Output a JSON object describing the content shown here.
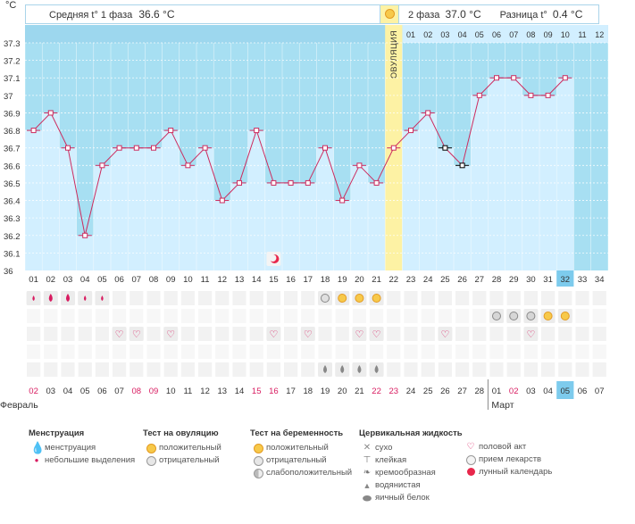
{
  "header": {
    "unit": "°C",
    "phase1_label": "Средняя t° 1 фаза",
    "phase1_value": "36.6 °C",
    "phase2_label": "2 фаза",
    "phase2_value": "37.0 °C",
    "diff_label": "Разница t°",
    "diff_value": "0.4 °C"
  },
  "ovulation_label": "ОВУЛЯЦИЯ",
  "y_ticks": [
    "37.3",
    "37.2",
    "37.1",
    "37",
    "36.9",
    "36.8",
    "36.7",
    "36.6",
    "36.5",
    "36.4",
    "36.3",
    "36.2",
    "36.1",
    "36"
  ],
  "top_day_numbers": [
    "01",
    "02",
    "03",
    "04",
    "05",
    "06",
    "07",
    "08",
    "09",
    "10",
    "11",
    "12"
  ],
  "cycle_days": [
    "01",
    "02",
    "03",
    "04",
    "05",
    "06",
    "07",
    "08",
    "09",
    "10",
    "11",
    "12",
    "13",
    "14",
    "15",
    "16",
    "17",
    "18",
    "19",
    "20",
    "21",
    "22",
    "23",
    "24",
    "25",
    "26",
    "27",
    "28",
    "29",
    "30",
    "31",
    "32",
    "33",
    "34"
  ],
  "current_cycle_day": "32",
  "calendar_dates": [
    "02",
    "03",
    "04",
    "05",
    "06",
    "07",
    "08",
    "09",
    "10",
    "11",
    "12",
    "13",
    "14",
    "15",
    "16",
    "17",
    "18",
    "19",
    "20",
    "21",
    "22",
    "23",
    "24",
    "25",
    "26",
    "27",
    "28",
    "01",
    "02",
    "03",
    "04",
    "05",
    "06",
    "07"
  ],
  "red_dates_idx": [
    0,
    6,
    7,
    13,
    14,
    20,
    21,
    28
  ],
  "current_date_idx": 31,
  "months": {
    "left": "Февраль",
    "right": "Март"
  },
  "chart_data": {
    "type": "line",
    "ylim": [
      36.0,
      37.3
    ],
    "ovulation_day": 22,
    "temperatures": [
      36.8,
      36.9,
      36.7,
      36.2,
      36.6,
      36.7,
      36.7,
      36.7,
      36.8,
      36.6,
      36.7,
      36.4,
      36.5,
      36.8,
      36.5,
      36.5,
      36.5,
      36.7,
      36.4,
      36.6,
      36.5,
      36.7,
      36.8,
      36.9,
      36.7,
      36.6,
      37.0,
      37.1,
      37.1,
      37.0,
      37.0,
      37.1
    ],
    "excluded_days": [
      25,
      26
    ]
  },
  "markers": {
    "menstruation_big": [
      2,
      3
    ],
    "menstruation_small": [
      1,
      4,
      5
    ],
    "ovulation_test_negative": [
      18
    ],
    "ovulation_test_positive": [
      19,
      20,
      21
    ],
    "pregnancy_test_weak": [
      28,
      29,
      30
    ],
    "pregnancy_test_positive": [
      31,
      32
    ],
    "intercourse": [
      6,
      7,
      9,
      15,
      17,
      20,
      21,
      25,
      30
    ],
    "watery": [
      18,
      19,
      20,
      21
    ],
    "moon": [
      15
    ]
  },
  "colors": {
    "phase_bg": "#a7dff2",
    "bar_fill": "#d2efff",
    "ovulation": "#fdf2a4",
    "line": "#cc2b5e",
    "current": "#7dcbed"
  },
  "legend": {
    "col1": {
      "title": "Менструация",
      "items": [
        "менструация",
        "небольшие выделения"
      ]
    },
    "col2": {
      "title": "Тест на овуляцию",
      "items": [
        "положительный",
        "отрицательный"
      ]
    },
    "col3": {
      "title": "Тест на беременность",
      "items": [
        "положительный",
        "отрицательный",
        "слабоположительный"
      ]
    },
    "col4": {
      "title": "Цервикальная жидкость",
      "items": [
        "сухо",
        "клейкая",
        "кремообразная",
        "водянистая",
        "яичный белок"
      ]
    },
    "col5": {
      "items": [
        "половой акт",
        "прием лекарств",
        "лунный календарь"
      ]
    }
  },
  "legend_icons": {
    "col1": [
      "drop-big-icon",
      "drop-small-icon"
    ],
    "col2": [
      "sun-icon",
      "grey-circle-icon"
    ],
    "col3": [
      "sun-icon",
      "grey-circle-icon",
      "half-circle-icon"
    ],
    "col4": [
      "cross-icon",
      "t-icon",
      "cream-icon",
      "drop-grey-icon",
      "egg-icon"
    ],
    "col5": [
      "heart-icon",
      "pill-icon",
      "moon-icon"
    ]
  }
}
